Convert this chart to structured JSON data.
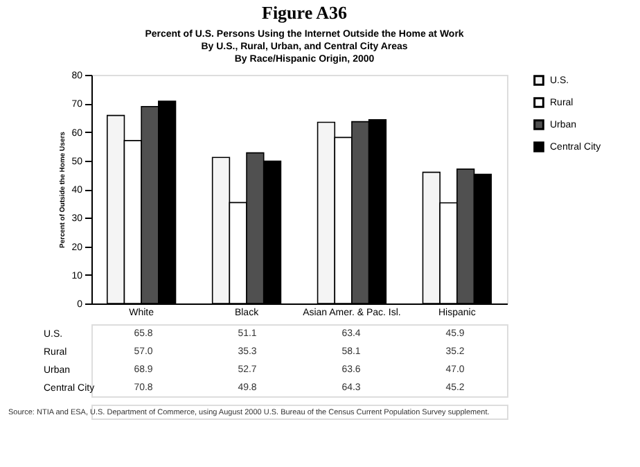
{
  "chart_data": {
    "type": "bar",
    "title": "Figure A36",
    "subtitle": "Percent of U.S. Persons Using the Internet Outside the Home at Work\nBy U.S., Rural, Urban, and Central City Areas\nBy Race/Hispanic Origin, 2000",
    "ylabel": "Percent of Outside the Home Users",
    "categories": [
      "White",
      "Black",
      "Asian Amer. & Pac. Isl.",
      "Hispanic"
    ],
    "series": [
      {
        "name": "U.S.",
        "color": "#f4f4f4",
        "values": [
          65.8,
          51.1,
          63.4,
          45.9
        ],
        "value_labels": [
          "65.8",
          "51.1",
          "63.4",
          "45.9"
        ]
      },
      {
        "name": "Rural",
        "color": "#ffffff",
        "values": [
          57.0,
          35.3,
          58.1,
          35.2
        ],
        "value_labels": [
          "57.0",
          "35.3",
          "58.1",
          "35.2"
        ]
      },
      {
        "name": "Urban",
        "color": "#505050",
        "values": [
          68.9,
          52.7,
          63.6,
          47.0
        ],
        "value_labels": [
          "68.9",
          "52.7",
          "63.6",
          "47.0"
        ]
      },
      {
        "name": "Central City",
        "color": "#000000",
        "values": [
          70.8,
          49.8,
          64.3,
          45.2
        ],
        "value_labels": [
          "70.8",
          "49.8",
          "64.3",
          "45.2"
        ]
      }
    ],
    "ylim": [
      0,
      80
    ],
    "yticks": [
      0,
      10,
      20,
      30,
      40,
      50,
      60,
      70,
      80
    ],
    "legend": "top right",
    "grid": false,
    "annotations": [
      "Source: NTIA and ESA, U.S. Department of Commerce, using August 2000 U.S. Bureau of the Census Current Population Survey supplement."
    ]
  }
}
